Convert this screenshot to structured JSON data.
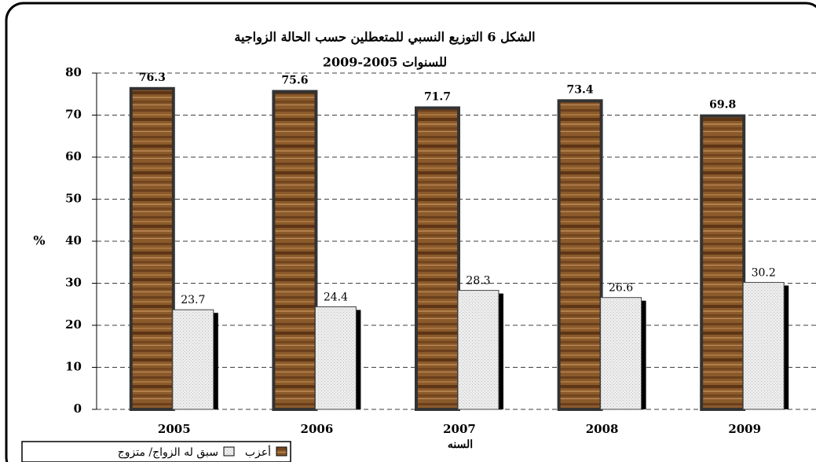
{
  "chart_data": {
    "type": "bar",
    "title": "الشكل 6 التوزيع النسبي للمتعطلين حسب الحالة الزواجية",
    "subtitle": "للسنوات 2005-2009",
    "y_label": "%",
    "x_label": "السنه",
    "categories": [
      "2005",
      "2006",
      "2007",
      "2008",
      "2009"
    ],
    "series": [
      {
        "name": "أعزب",
        "color": "#8b5a2b",
        "values": [
          76.3,
          75.6,
          71.7,
          73.4,
          69.8
        ]
      },
      {
        "name": "سبق له الزواج/ متزوج",
        "color": "#e6e6e6",
        "values": [
          23.7,
          24.4,
          28.3,
          26.6,
          30.2
        ]
      }
    ],
    "ylim": [
      0,
      80
    ],
    "yticks": [
      0,
      10,
      20,
      30,
      40,
      50,
      60,
      70,
      80
    ],
    "grid": true
  }
}
